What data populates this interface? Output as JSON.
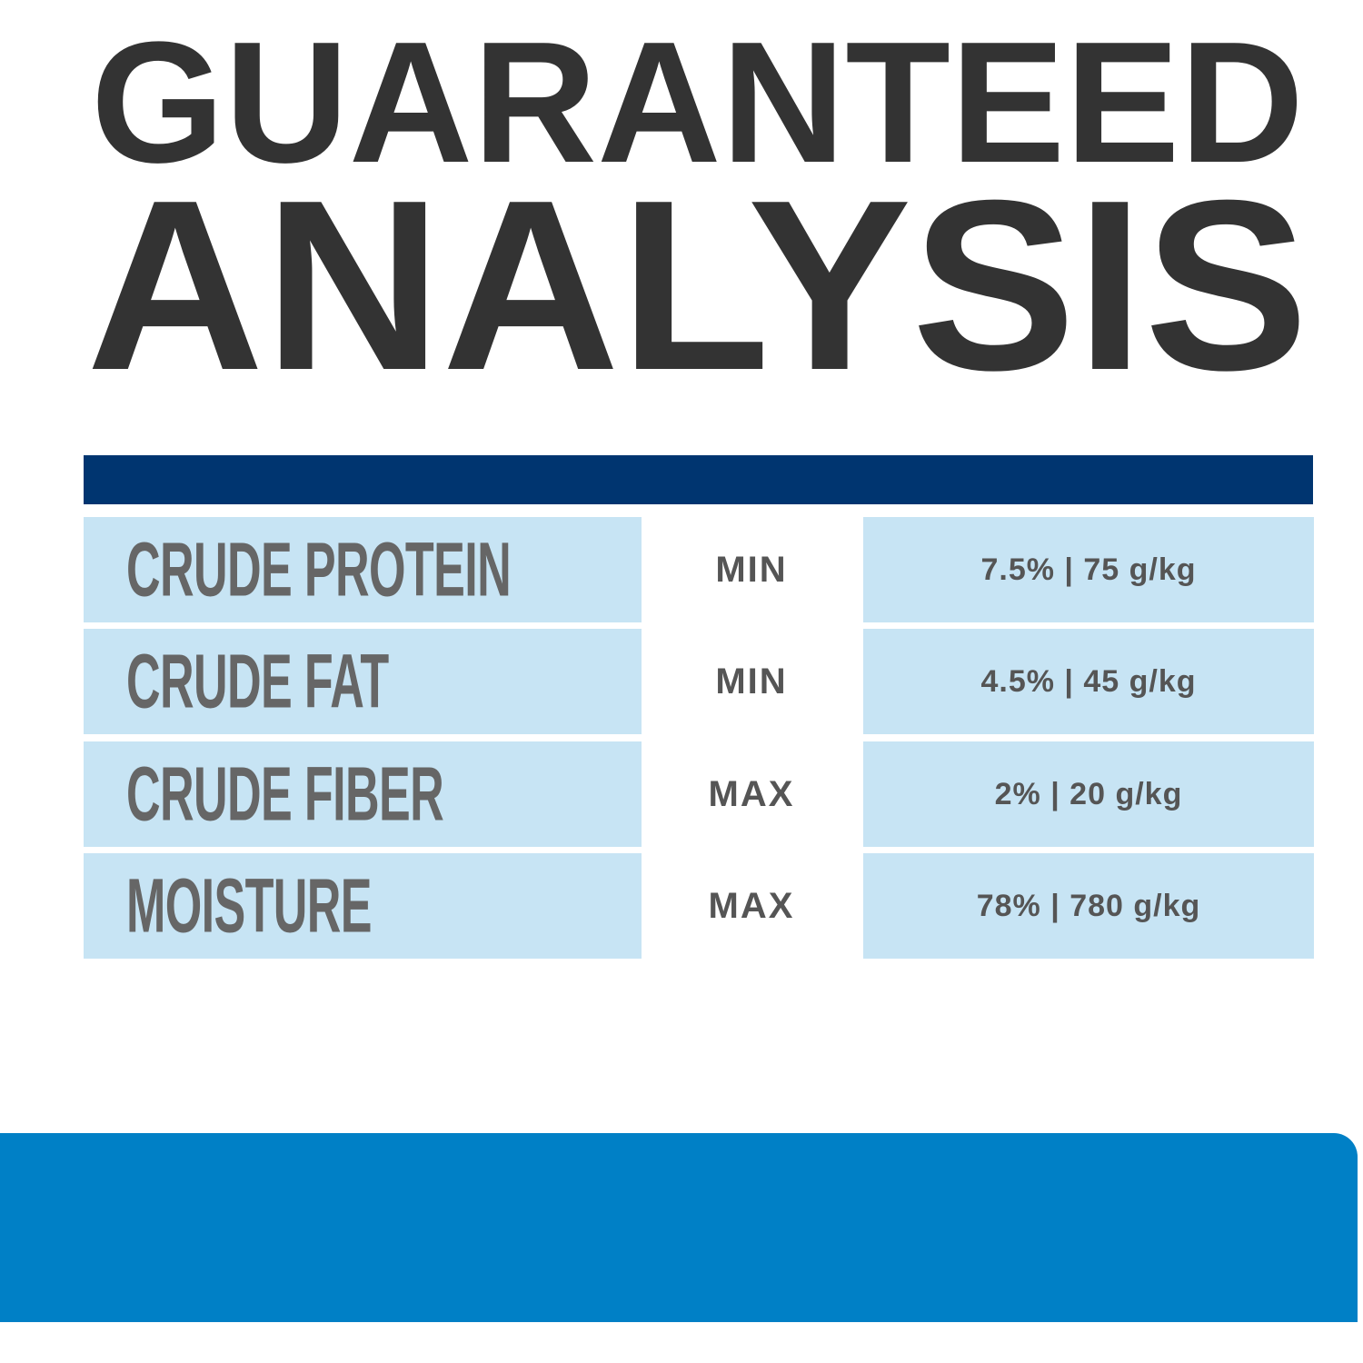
{
  "title": {
    "line1": "GUARANTEED",
    "line2": "ANALYSIS"
  },
  "colors": {
    "title": "#333333",
    "header_bar": "#003570",
    "cell_bg": "#c7e4f4",
    "label_text": "#666666",
    "footer_band": "#0080c6"
  },
  "rows": [
    {
      "nutrient": "CRUDE PROTEIN",
      "qualifier": "MIN",
      "value": "7.5% | 75 g/kg"
    },
    {
      "nutrient": "CRUDE FAT",
      "qualifier": "MIN",
      "value": "4.5% | 45 g/kg"
    },
    {
      "nutrient": "CRUDE FIBER",
      "qualifier": "MAX",
      "value": "2% | 20 g/kg"
    },
    {
      "nutrient": "MOISTURE",
      "qualifier": "MAX",
      "value": "78% | 780 g/kg"
    }
  ]
}
